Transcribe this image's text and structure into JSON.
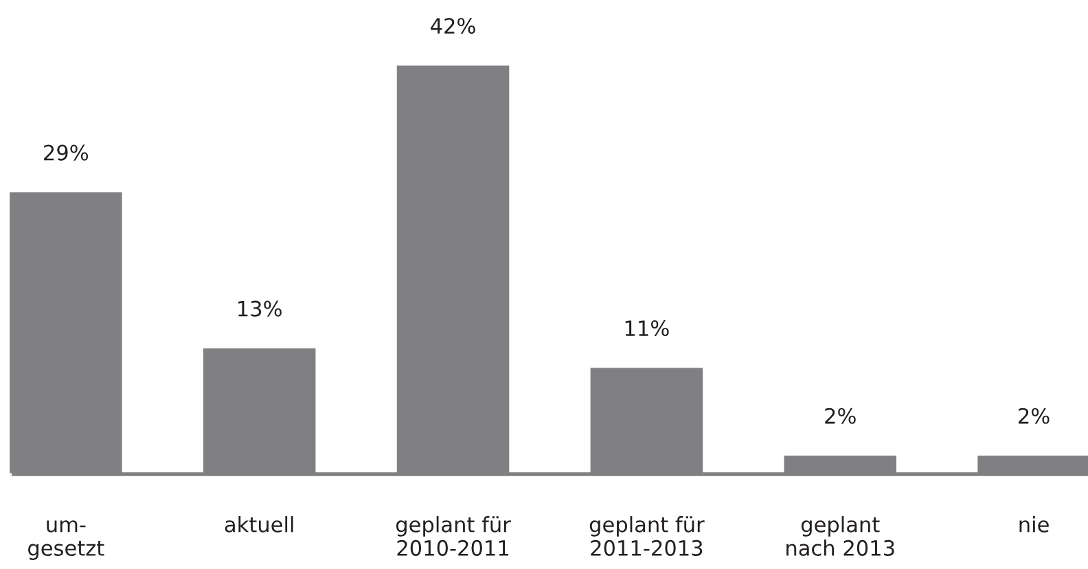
{
  "chart_data": {
    "type": "bar",
    "categories": [
      "um-\ngesetzt",
      "aktuell",
      "geplant für\n2010-2011",
      "geplant für\n2011-2013",
      "geplant\nnach 2013",
      "nie"
    ],
    "values": [
      29,
      13,
      42,
      11,
      2,
      2
    ],
    "value_labels": [
      "29%",
      "13%",
      "42%",
      "11%",
      "2%",
      "2%"
    ],
    "color": "#808083",
    "grid": false,
    "legend": false
  }
}
